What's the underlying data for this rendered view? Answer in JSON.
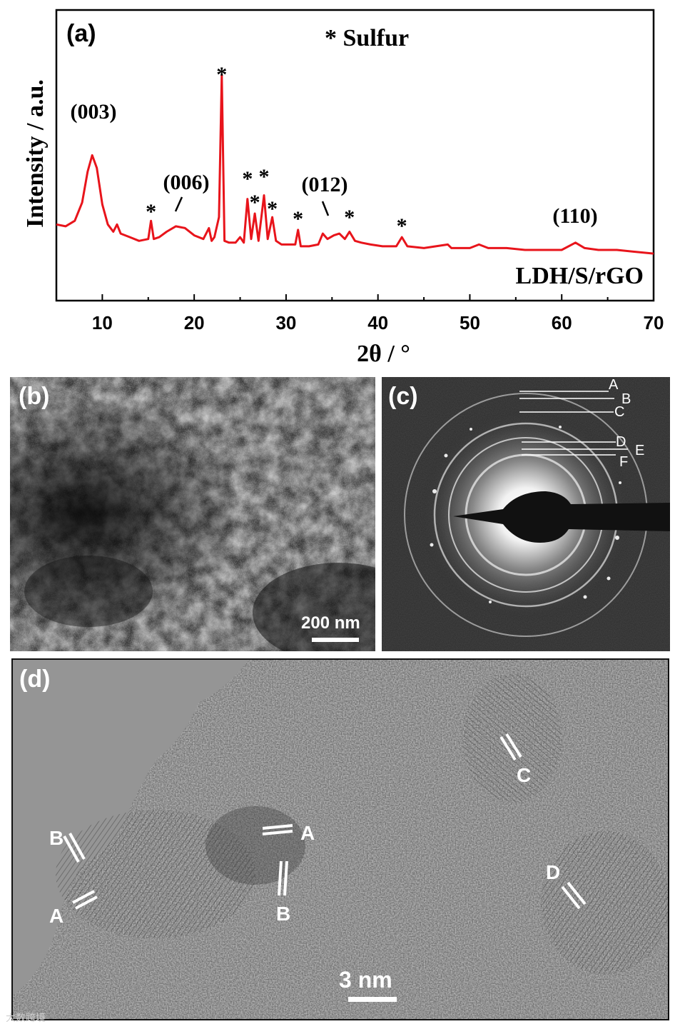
{
  "figure": {
    "panels": [
      {
        "id": "a",
        "label": "(a)"
      },
      {
        "id": "b",
        "label": "(b)",
        "scale_bar": "200 nm"
      },
      {
        "id": "c",
        "label": "(c)",
        "ring_labels": [
          "A",
          "B",
          "C",
          "D",
          "E",
          "F"
        ]
      },
      {
        "id": "d",
        "label": "(d)",
        "scale_bar": "3 nm",
        "fringe_labels": [
          "B",
          "A",
          "A",
          "B",
          "C",
          "D"
        ]
      }
    ],
    "watermark": "大数跨境"
  },
  "chart_data": {
    "type": "line",
    "xlabel": "2θ / °",
    "ylabel": "Intensity / a.u.",
    "xlim": [
      5,
      70
    ],
    "xticks": [
      10,
      20,
      30,
      40,
      50,
      60,
      70
    ],
    "legend_text": "* Sulfur",
    "sample_label": "LDH/S/rGO",
    "series_color": "#e8141b",
    "series": [
      {
        "x": [
          5,
          6,
          7,
          7.8,
          8.4,
          8.9,
          9.4,
          10,
          10.6,
          11.2,
          11.6,
          12,
          13,
          14,
          15,
          15.3,
          15.6,
          16.2,
          17,
          18,
          19,
          20,
          21,
          21.6,
          21.9,
          22.2,
          22.7,
          23,
          23.3,
          23.8,
          24.5,
          25,
          25.4,
          25.8,
          26.2,
          26.6,
          27,
          27.6,
          28,
          28.5,
          28.9,
          29.5,
          30.5,
          31,
          31.3,
          31.6,
          32.5,
          33.5,
          34,
          34.5,
          35.2,
          35.8,
          36.4,
          36.9,
          37.5,
          38.2,
          39.2,
          40.5,
          42,
          42.6,
          43.2,
          45,
          47.6,
          48,
          50,
          51,
          52,
          53,
          54,
          56,
          58,
          60,
          61.5,
          62.5,
          64,
          66,
          68,
          70
        ],
        "y": [
          0.14,
          0.13,
          0.16,
          0.26,
          0.43,
          0.52,
          0.45,
          0.25,
          0.14,
          0.1,
          0.14,
          0.09,
          0.07,
          0.05,
          0.06,
          0.16,
          0.06,
          0.07,
          0.1,
          0.13,
          0.12,
          0.08,
          0.06,
          0.12,
          0.05,
          0.07,
          0.18,
          0.96,
          0.05,
          0.04,
          0.04,
          0.07,
          0.04,
          0.28,
          0.06,
          0.2,
          0.05,
          0.3,
          0.06,
          0.18,
          0.05,
          0.03,
          0.03,
          0.03,
          0.11,
          0.02,
          0.02,
          0.03,
          0.09,
          0.06,
          0.08,
          0.09,
          0.06,
          0.1,
          0.05,
          0.04,
          0.03,
          0.02,
          0.02,
          0.07,
          0.02,
          0.01,
          0.03,
          0.01,
          0.01,
          0.03,
          0.01,
          0.01,
          0.01,
          0.0,
          0.0,
          0.0,
          0.04,
          0.01,
          0.0,
          0.0,
          -0.01,
          -0.02
        ]
      }
    ],
    "peak_annotations": [
      {
        "text": "(003)",
        "x": 8.9
      },
      {
        "text": "(006)",
        "x": 18.5
      },
      {
        "text": "(012)",
        "x": 34.5
      },
      {
        "text": "(110)",
        "x": 61.5
      }
    ],
    "sulfur_peaks_x": [
      15.3,
      23.0,
      25.8,
      26.6,
      27.6,
      28.5,
      31.3,
      36.9,
      42.6
    ]
  }
}
